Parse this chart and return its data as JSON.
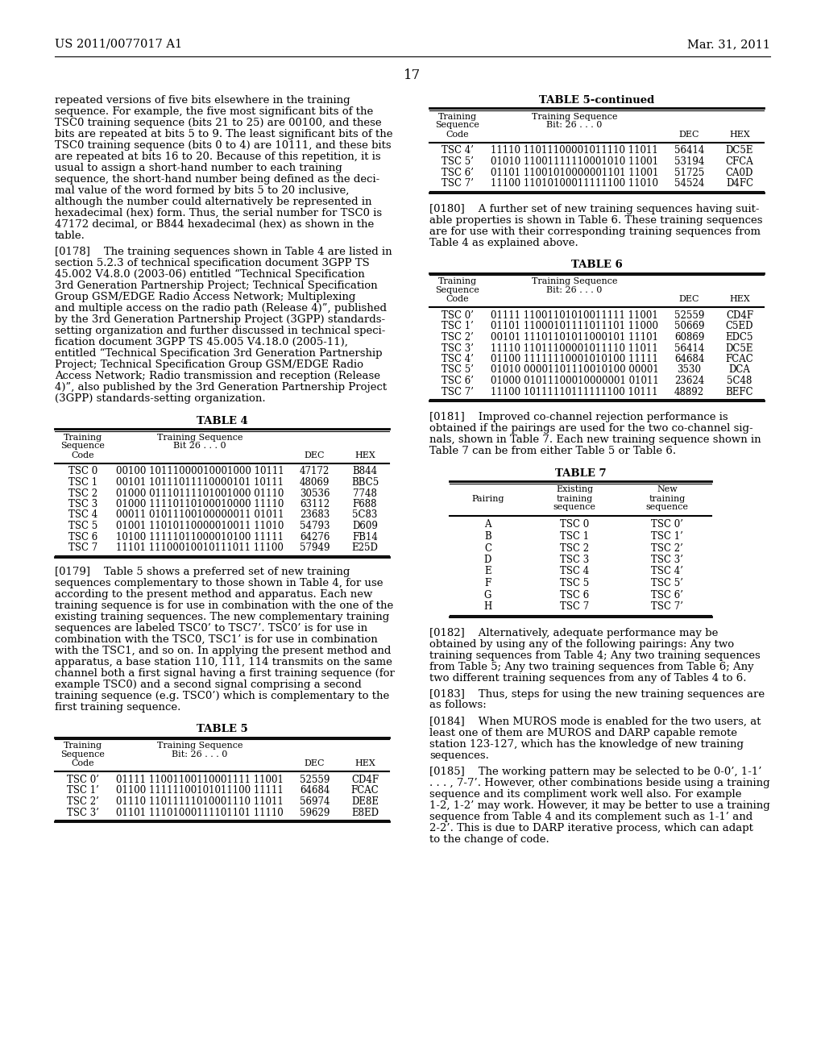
{
  "header_left": "US 2011/0077017 A1",
  "header_right": "Mar. 31, 2011",
  "page_number": "17",
  "background_color": "#ffffff",
  "text_color": "#000000",
  "para1_lines": [
    "repeated versions of five bits elsewhere in the training",
    "sequence. For example, the five most significant bits of the",
    "TSC0 training sequence (bits 21 to 25) are 00100, and these",
    "bits are repeated at bits 5 to 9. The least significant bits of the",
    "TSC0 training sequence (bits 0 to 4) are 10111, and these bits",
    "are repeated at bits 16 to 20. Because of this repetition, it is",
    "usual to assign a short-hand number to each training",
    "sequence, the short-hand number being defined as the deci-",
    "mal value of the word formed by bits 5 to 20 inclusive,",
    "although the number could alternatively be represented in",
    "hexadecimal (hex) form. Thus, the serial number for TSC0 is",
    "47172 decimal, or B844 hexadecimal (hex) as shown in the",
    "table."
  ],
  "para178_lines": [
    "[0178]    The training sequences shown in Table 4 are listed in",
    "section 5.2.3 of technical specification document 3GPP TS",
    "45.002 V4.8.0 (2003-06) entitled “Technical Specification",
    "3rd Generation Partnership Project; Technical Specification",
    "Group GSM/EDGE Radio Access Network; Multiplexing",
    "and multiple access on the radio path (Release 4)”, published",
    "by the 3rd Generation Partnership Project (3GPP) standards-",
    "setting organization and further discussed in technical speci-",
    "fication document 3GPP TS 45.005 V4.18.0 (2005-11),",
    "entitled “Technical Specification 3rd Generation Partnership",
    "Project; Technical Specification Group GSM/EDGE Radio",
    "Access Network; Radio transmission and reception (Release",
    "4)”, also published by the 3rd Generation Partnership Project",
    "(3GPP) standards-setting organization."
  ],
  "table4_title": "TABLE 4",
  "table4_rows": [
    [
      "TSC 0",
      "00100 10111000010001000 10111",
      "47172",
      "B844"
    ],
    [
      "TSC 1",
      "00101 10111011110000101 10111",
      "48069",
      "BBC5"
    ],
    [
      "TSC 2",
      "01000 01110111101001000 01110",
      "30536",
      "7748"
    ],
    [
      "TSC 3",
      "01000 11110110100010000 11110",
      "63112",
      "F688"
    ],
    [
      "TSC 4",
      "00011 01011100100000011 01011",
      "23683",
      "5C83"
    ],
    [
      "TSC 5",
      "01001 11010110000010011 11010",
      "54793",
      "D609"
    ],
    [
      "TSC 6",
      "10100 11111011000010100 11111",
      "64276",
      "FB14"
    ],
    [
      "TSC 7",
      "11101 11100010010111011 11100",
      "57949",
      "E25D"
    ]
  ],
  "para179_lines": [
    "[0179]    Table 5 shows a preferred set of new training",
    "sequences complementary to those shown in Table 4, for use",
    "according to the present method and apparatus. Each new",
    "training sequence is for use in combination with the one of the",
    "existing training sequences. The new complementary training",
    "sequences are labeled TSC0’ to TSC7’. TSC0’ is for use in",
    "combination with the TSC0, TSC1’ is for use in combination",
    "with the TSC1, and so on. In applying the present method and",
    "apparatus, a base station 110, 111, 114 transmits on the same",
    "channel both a first signal having a first training sequence (for",
    "example TSC0) and a second signal comprising a second",
    "training sequence (e.g. TSC0’) which is complementary to the",
    "first training sequence."
  ],
  "table5_title": "TABLE 5",
  "table5_rows": [
    [
      "TSC 0’",
      "01111 11001100110001111 11001",
      "52559",
      "CD4F"
    ],
    [
      "TSC 1’",
      "01100 11111100101011100 11111",
      "64684",
      "FCAC"
    ],
    [
      "TSC 2’",
      "01110 11011111010001110 11011",
      "56974",
      "DE8E"
    ],
    [
      "TSC 3’",
      "01101 11101000111101101 11110",
      "59629",
      "E8ED"
    ]
  ],
  "table5cont_title": "TABLE 5-continued",
  "table5cont_rows": [
    [
      "TSC 4’",
      "11110 11011100001011110 11011",
      "56414",
      "DC5E"
    ],
    [
      "TSC 5’",
      "01010 11001111110001010 11001",
      "53194",
      "CFCA"
    ],
    [
      "TSC 6’",
      "01101 11001010000001101 11001",
      "51725",
      "CA0D"
    ],
    [
      "TSC 7’",
      "11100 11010100011111100 11010",
      "54524",
      "D4FC"
    ]
  ],
  "para180_lines": [
    "[0180]    A further set of new training sequences having suit-",
    "able properties is shown in Table 6. These training sequences",
    "are for use with their corresponding training sequences from",
    "Table 4 as explained above."
  ],
  "table6_title": "TABLE 6",
  "table6_rows": [
    [
      "TSC 0’",
      "01111 11001101010011111 11001",
      "52559",
      "CD4F"
    ],
    [
      "TSC 1’",
      "01101 11000101111011101 11000",
      "50669",
      "C5ED"
    ],
    [
      "TSC 2’",
      "00101 11101101011000101 11101",
      "60869",
      "EDC5"
    ],
    [
      "TSC 3’",
      "11110 11011100001011110 11011",
      "56414",
      "DC5E"
    ],
    [
      "TSC 4’",
      "01100 11111110001010100 11111",
      "64684",
      "FCAC"
    ],
    [
      "TSC 5’",
      "01010 00001101110010100 00001",
      "3530",
      "DCA"
    ],
    [
      "TSC 6’",
      "01000 01011100010000001 01011",
      "23624",
      "5C48"
    ],
    [
      "TSC 7’",
      "11100 10111110111111100 10111",
      "48892",
      "BEFC"
    ]
  ],
  "para181_lines": [
    "[0181]    Improved co-channel rejection performance is",
    "obtained if the pairings are used for the two co-channel sig-",
    "nals, shown in Table 7. Each new training sequence shown in",
    "Table 7 can be from either Table 5 or Table 6."
  ],
  "table7_title": "TABLE 7",
  "table7_rows": [
    [
      "A",
      "TSC 0",
      "TSC 0’"
    ],
    [
      "B",
      "TSC 1",
      "TSC 1’"
    ],
    [
      "C",
      "TSC 2",
      "TSC 2’"
    ],
    [
      "D",
      "TSC 3",
      "TSC 3’"
    ],
    [
      "E",
      "TSC 4",
      "TSC 4’"
    ],
    [
      "F",
      "TSC 5",
      "TSC 5’"
    ],
    [
      "G",
      "TSC 6",
      "TSC 6’"
    ],
    [
      "H",
      "TSC 7",
      "TSC 7’"
    ]
  ],
  "para182_lines": [
    "[0182]    Alternatively, adequate performance may be",
    "obtained by using any of the following pairings: Any two",
    "training sequences from Table 4; Any two training sequences",
    "from Table 5; Any two training sequences from Table 6; Any",
    "two different training sequences from any of Tables 4 to 6."
  ],
  "para183_lines": [
    "[0183]    Thus, steps for using the new training sequences are",
    "as follows:"
  ],
  "para184_lines": [
    "[0184]    When MUROS mode is enabled for the two users, at",
    "least one of them are MUROS and DARP capable remote",
    "station 123-127, which has the knowledge of new training",
    "sequences."
  ],
  "para185_lines": [
    "[0185]    The working pattern may be selected to be 0-0’, 1-1’",
    ". . . , 7-7’. However, other combinations beside using a training",
    "sequence and its compliment work well also. For example",
    "1-2, 1-2’ may work. However, it may be better to use a training",
    "sequence from Table 4 and its complement such as 1-1’ and",
    "2-2’. This is due to DARP iterative process, which can adapt",
    "to the change of code."
  ]
}
